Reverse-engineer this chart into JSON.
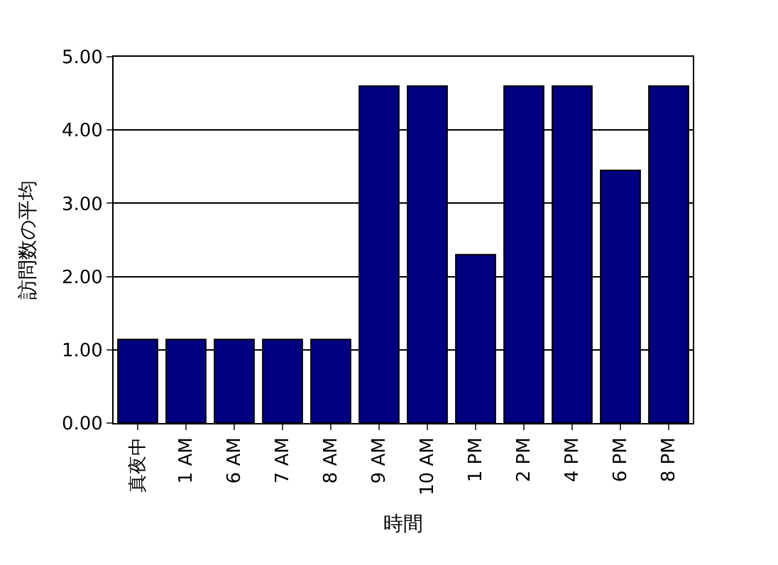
{
  "chart_data": {
    "type": "bar",
    "xlabel": "時間",
    "ylabel": "訪問数の平均",
    "categories": [
      "真夜中",
      "1 AM",
      "6 AM",
      "7 AM",
      "8 AM",
      "9 AM",
      "10 AM",
      "1 PM",
      "2 PM",
      "4 PM",
      "6 PM",
      "8 PM"
    ],
    "values": [
      1.14,
      1.14,
      1.14,
      1.14,
      1.14,
      4.6,
      4.6,
      2.3,
      4.6,
      4.6,
      3.45,
      4.6
    ],
    "color": "#000080",
    "ylim": [
      0,
      5
    ],
    "yticks": [
      {
        "value": 0,
        "label": "0.00"
      },
      {
        "value": 1,
        "label": "1.00"
      },
      {
        "value": 2,
        "label": "2.00"
      },
      {
        "value": 3,
        "label": "3.00"
      },
      {
        "value": 4,
        "label": "4.00"
      },
      {
        "value": 5,
        "label": "5.00"
      }
    ],
    "grid": "y"
  }
}
